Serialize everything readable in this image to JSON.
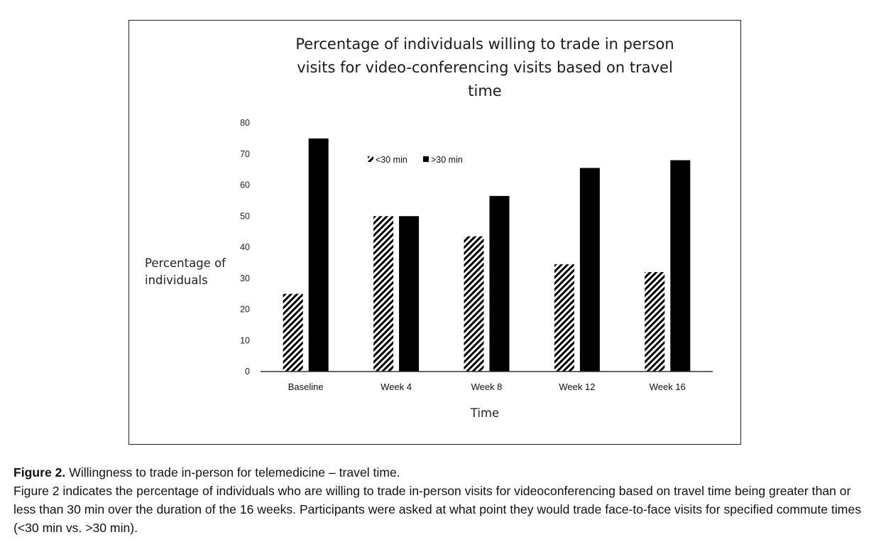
{
  "chart_data": {
    "type": "bar",
    "title_lines": [
      "Percentage of individuals willing to trade in person",
      "visits for video-conferencing visits based on travel",
      "time"
    ],
    "xlabel": "Time",
    "ylabel_lines": [
      "Percentage of",
      "individuals"
    ],
    "categories": [
      "Baseline",
      "Week 4",
      "Week 8",
      "Week 12",
      "Week 16"
    ],
    "series": [
      {
        "name": "<30 min",
        "values": [
          25,
          50,
          43.5,
          34.5,
          32
        ],
        "fill": "hatched",
        "color": "#000000"
      },
      {
        "name": ">30 min",
        "values": [
          75,
          50,
          56.5,
          65.5,
          68
        ],
        "fill": "solid",
        "color": "#000000"
      }
    ],
    "ylim": [
      0,
      80
    ],
    "yticks": [
      0,
      10,
      20,
      30,
      40,
      50,
      60,
      70,
      80
    ],
    "grid": false,
    "legend_position": "top-center"
  },
  "caption": {
    "label": "Figure 2.",
    "title": "Willingness to trade in-person for telemedicine – travel time.",
    "body": "Figure 2 indicates the percentage of individuals who are willing to trade in-person visits for videoconferencing based on travel time being greater than or less than 30 min over the duration of the 16 weeks. Participants were asked at what point they would trade face-to-face visits for specified commute times (<30 min vs. >30 min)."
  }
}
